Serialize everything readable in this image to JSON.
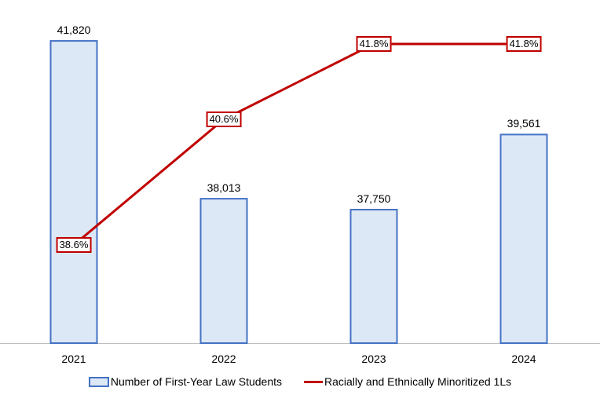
{
  "chart_data": {
    "type": "bar+line",
    "title": "",
    "categories": [
      "2021",
      "2022",
      "2023",
      "2024"
    ],
    "series": [
      {
        "name": "Number of First-Year Law Students",
        "type": "bar",
        "values": [
          41820,
          38013,
          37750,
          39561
        ],
        "labels": [
          "41,820",
          "38,013",
          "37,750",
          "39,561"
        ],
        "color": "#4472c4",
        "fill": "#dde8f6"
      },
      {
        "name": "Racially and Ethnically Minoritized 1Ls",
        "type": "line",
        "values": [
          38.6,
          40.6,
          41.8,
          41.8
        ],
        "labels": [
          "38.6%",
          "40.6%",
          "41.8%",
          "41.8%"
        ],
        "color": "#c00000"
      }
    ],
    "xlabel": "",
    "ylabel": "",
    "grid": false,
    "legend_position": "bottom"
  },
  "legend": {
    "bar_label": "Number of First-Year Law Students",
    "line_label": "Racially and Ethnically Minoritized 1Ls"
  }
}
